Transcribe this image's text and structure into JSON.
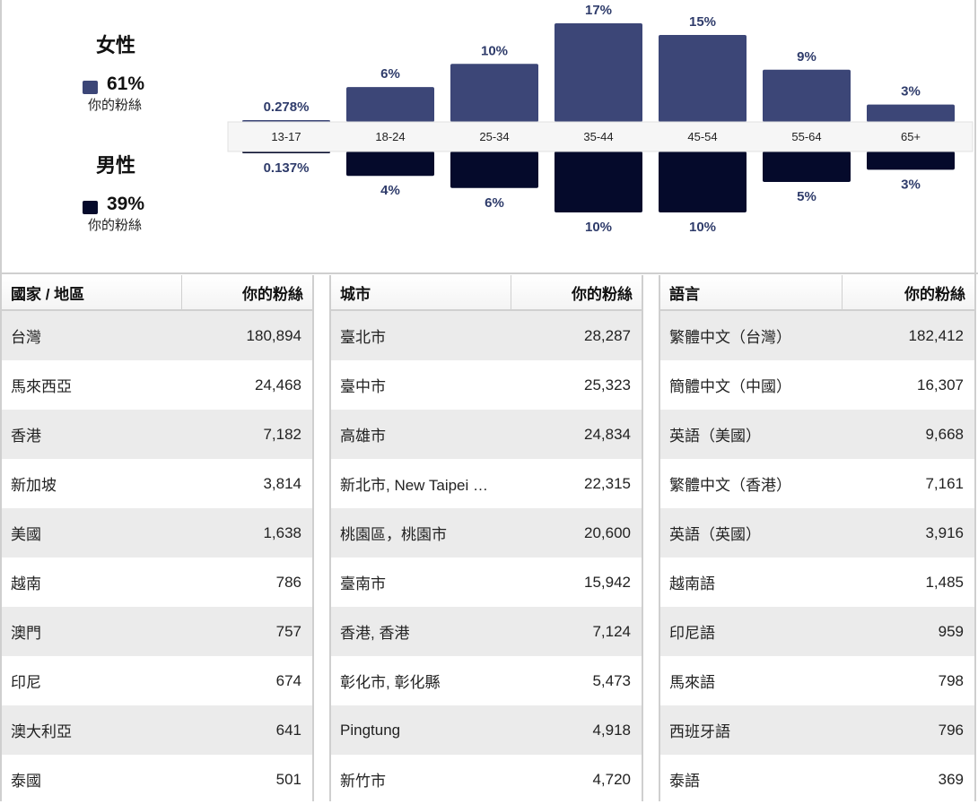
{
  "gender": {
    "female": {
      "title": "女性",
      "percent": "61%",
      "sub": "你的粉絲",
      "color": "#3c4677"
    },
    "male": {
      "title": "男性",
      "percent": "39%",
      "sub": "你的粉絲",
      "color": "#050a2b"
    }
  },
  "chart_data": {
    "type": "bar",
    "categories": [
      "13-17",
      "18-24",
      "25-34",
      "35-44",
      "45-54",
      "55-64",
      "65+"
    ],
    "series": [
      {
        "name": "女性",
        "values": [
          0.278,
          6,
          10,
          17,
          15,
          9,
          3
        ],
        "labels": [
          "0.278%",
          "6%",
          "10%",
          "17%",
          "15%",
          "9%",
          "3%"
        ],
        "color": "#3c4677"
      },
      {
        "name": "男性",
        "values": [
          0.137,
          4,
          6,
          10,
          10,
          5,
          3
        ],
        "labels": [
          "0.137%",
          "4%",
          "6%",
          "10%",
          "10%",
          "5%",
          "3%"
        ],
        "color": "#050a2b"
      }
    ]
  },
  "tables": [
    {
      "header": {
        "name": "國家 / 地區",
        "count": "你的粉絲"
      },
      "rows": [
        {
          "name": "台灣",
          "count": "180,894"
        },
        {
          "name": "馬來西亞",
          "count": "24,468"
        },
        {
          "name": "香港",
          "count": "7,182"
        },
        {
          "name": "新加坡",
          "count": "3,814"
        },
        {
          "name": "美國",
          "count": "1,638"
        },
        {
          "name": "越南",
          "count": "786"
        },
        {
          "name": "澳門",
          "count": "757"
        },
        {
          "name": "印尼",
          "count": "674"
        },
        {
          "name": "澳大利亞",
          "count": "641"
        },
        {
          "name": "泰國",
          "count": "501"
        }
      ]
    },
    {
      "header": {
        "name": "城市",
        "count": "你的粉絲"
      },
      "rows": [
        {
          "name": "臺北市",
          "count": "28,287"
        },
        {
          "name": "臺中市",
          "count": "25,323"
        },
        {
          "name": "高雄市",
          "count": "24,834"
        },
        {
          "name": "新北市, New Taipei …",
          "count": "22,315"
        },
        {
          "name": "桃園區，桃園市",
          "count": "20,600"
        },
        {
          "name": "臺南市",
          "count": "15,942"
        },
        {
          "name": "香港, 香港",
          "count": "7,124"
        },
        {
          "name": "彰化市, 彰化縣",
          "count": "5,473"
        },
        {
          "name": "Pingtung",
          "count": "4,918"
        },
        {
          "name": "新竹市",
          "count": "4,720"
        }
      ]
    },
    {
      "header": {
        "name": "語言",
        "count": "你的粉絲"
      },
      "rows": [
        {
          "name": "繁體中文（台灣）",
          "count": "182,412"
        },
        {
          "name": "簡體中文（中國）",
          "count": "16,307"
        },
        {
          "name": "英語（美國）",
          "count": "9,668"
        },
        {
          "name": "繁體中文（香港）",
          "count": "7,161"
        },
        {
          "name": "英語（英國）",
          "count": "3,916"
        },
        {
          "name": "越南語",
          "count": "1,485"
        },
        {
          "name": "印尼語",
          "count": "959"
        },
        {
          "name": "馬來語",
          "count": "798"
        },
        {
          "name": "西班牙語",
          "count": "796"
        },
        {
          "name": "泰語",
          "count": "369"
        }
      ]
    }
  ]
}
